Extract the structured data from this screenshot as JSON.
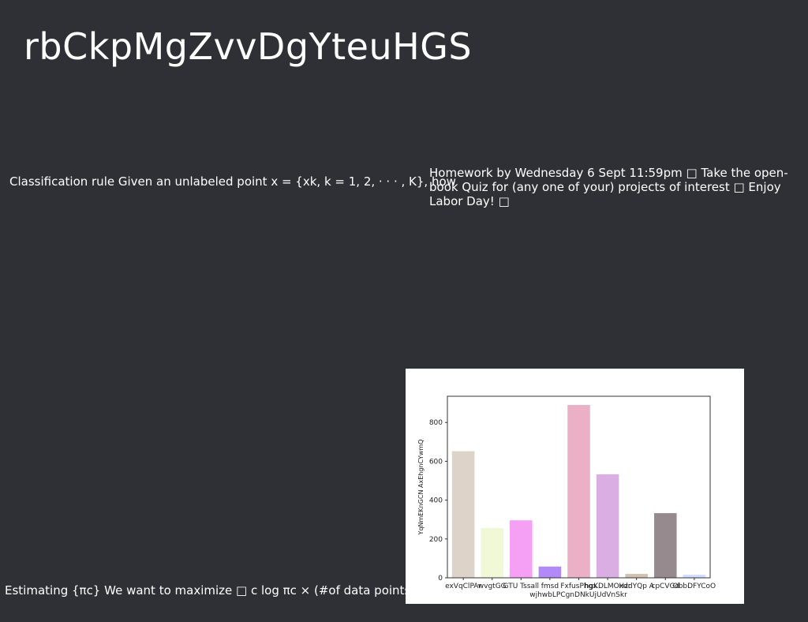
{
  "slide": {
    "title": "rbCkpMgZvvDgYteuHGS",
    "text_left": "Classification rule Given an unlabeled point x = {xk, k = 1, 2, · · · , K}, how",
    "text_right": "Homework by Wednesday 6 Sept 11:59pm □ Take the open-book Quiz for (any one of your) projects of interest □ Enjoy Labor Day! □",
    "text_bottom": "Estimating {πc} We want to maximize □ c log πc × (#of data points"
  },
  "chart_data": {
    "type": "bar",
    "title": "",
    "xlabel": "wjhwbLPCgnDNkUjUdVnSkr",
    "ylabel": "YqNmEKnGCN AxEhgnCYwmQ",
    "ylim": [
      0,
      935
    ],
    "yticks": [
      0,
      200,
      400,
      600,
      800
    ],
    "categories": [
      "exVqClPAr",
      "wvgtGG",
      "GTU Tssall",
      "fmsd",
      "FxfusPhgx",
      "hgKDLMOxdr",
      "HzdYQp A",
      "cpCVGd",
      "ObbDFYCoO"
    ],
    "values": [
      652,
      256,
      296,
      58,
      890,
      533,
      20,
      333,
      16
    ],
    "colors": [
      "#ded3c9",
      "#f0f9d6",
      "#f59ff5",
      "#b18af7",
      "#ebafc6",
      "#daaee2",
      "#d4c0b1",
      "#978a8f",
      "#d2deff"
    ],
    "grid": false
  }
}
